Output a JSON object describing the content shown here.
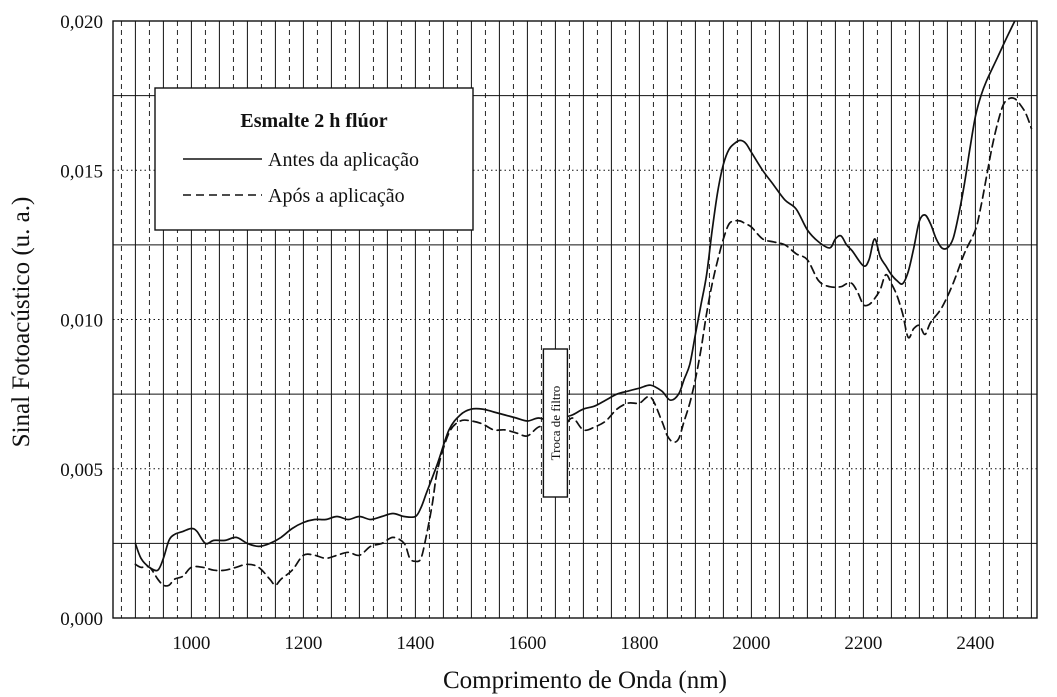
{
  "chart_data": {
    "type": "line",
    "title": "",
    "xlabel": "Comprimento de Onda (nm)",
    "ylabel": "Sinal Fotoacústico (u. a.)",
    "xlim": [
      860,
      2510
    ],
    "ylim": [
      0.0,
      0.02
    ],
    "x_ticks": [
      1000,
      1200,
      1400,
      1600,
      1800,
      2000,
      2200,
      2400
    ],
    "x_tick_labels": [
      "1000",
      "1200",
      "1400",
      "1600",
      "1800",
      "2000",
      "2200",
      "2400"
    ],
    "y_ticks": [
      0.0,
      0.005,
      0.01,
      0.015,
      0.02
    ],
    "y_tick_labels": [
      "0,000",
      "0,005",
      "0,010",
      "0,015",
      "0,020"
    ],
    "grid": true,
    "legend": {
      "title": "Esmalte 2 h flúor",
      "placement": "top-left"
    },
    "annotation": "Troca de filtro",
    "annotation_x": 1650,
    "series": [
      {
        "name": "Antes da aplicação",
        "style": "solid",
        "color": "#111111",
        "x": [
          900,
          910,
          925,
          940,
          950,
          960,
          970,
          985,
          1000,
          1010,
          1025,
          1040,
          1060,
          1080,
          1100,
          1120,
          1140,
          1160,
          1180,
          1200,
          1220,
          1240,
          1260,
          1280,
          1300,
          1320,
          1340,
          1360,
          1380,
          1400,
          1410,
          1420,
          1440,
          1460,
          1480,
          1500,
          1520,
          1540,
          1560,
          1580,
          1600,
          1620,
          1640,
          1660,
          1680,
          1700,
          1720,
          1740,
          1760,
          1780,
          1800,
          1820,
          1840,
          1855,
          1870,
          1880,
          1890,
          1900,
          1910,
          1920,
          1930,
          1940,
          1950,
          1960,
          1970,
          1980,
          1990,
          2000,
          2020,
          2040,
          2060,
          2080,
          2100,
          2120,
          2140,
          2150,
          2160,
          2170,
          2180,
          2200,
          2210,
          2220,
          2230,
          2240,
          2250,
          2260,
          2270,
          2280,
          2290,
          2300,
          2310,
          2320,
          2330,
          2340,
          2350,
          2360,
          2370,
          2380,
          2390,
          2400,
          2410,
          2420,
          2440,
          2460,
          2480,
          2500
        ],
        "y": [
          0.0025,
          0.002,
          0.0017,
          0.0016,
          0.002,
          0.0026,
          0.0028,
          0.0029,
          0.003,
          0.0029,
          0.0025,
          0.0026,
          0.0026,
          0.0027,
          0.0025,
          0.0024,
          0.0025,
          0.0027,
          0.003,
          0.0032,
          0.0033,
          0.0033,
          0.0034,
          0.0033,
          0.0034,
          0.0033,
          0.0034,
          0.0035,
          0.0034,
          0.0034,
          0.0037,
          0.0042,
          0.0052,
          0.0063,
          0.0068,
          0.007,
          0.007,
          0.0069,
          0.0068,
          0.0067,
          0.0066,
          0.0067,
          0.0066,
          0.0067,
          0.0068,
          0.007,
          0.0071,
          0.0073,
          0.0075,
          0.0076,
          0.0077,
          0.0078,
          0.0076,
          0.0073,
          0.0075,
          0.008,
          0.0085,
          0.0095,
          0.0105,
          0.0115,
          0.013,
          0.0143,
          0.0152,
          0.0157,
          0.0159,
          0.016,
          0.0159,
          0.0156,
          0.015,
          0.0145,
          0.014,
          0.0137,
          0.013,
          0.0126,
          0.0124,
          0.0127,
          0.0128,
          0.0125,
          0.0123,
          0.0118,
          0.012,
          0.0127,
          0.0121,
          0.0118,
          0.0115,
          0.0113,
          0.0112,
          0.0116,
          0.0124,
          0.0133,
          0.0135,
          0.0132,
          0.0127,
          0.0124,
          0.0124,
          0.0127,
          0.0135,
          0.0145,
          0.0157,
          0.0168,
          0.0175,
          0.018,
          0.0188,
          0.0196,
          0.0203,
          0.0205
        ],
        "segments": [
          [
            900,
            2468
          ]
        ]
      },
      {
        "name": "Após a aplicação",
        "style": "dashed",
        "color": "#111111",
        "x": [
          900,
          910,
          925,
          940,
          950,
          960,
          970,
          985,
          1000,
          1020,
          1040,
          1060,
          1080,
          1100,
          1120,
          1140,
          1150,
          1160,
          1180,
          1200,
          1220,
          1240,
          1260,
          1280,
          1300,
          1320,
          1340,
          1360,
          1380,
          1390,
          1400,
          1410,
          1420,
          1430,
          1440,
          1460,
          1480,
          1500,
          1520,
          1540,
          1560,
          1580,
          1600,
          1620,
          1640,
          1660,
          1680,
          1700,
          1720,
          1740,
          1760,
          1780,
          1800,
          1820,
          1840,
          1850,
          1860,
          1870,
          1880,
          1890,
          1900,
          1910,
          1920,
          1930,
          1940,
          1950,
          1960,
          1970,
          1980,
          1990,
          2000,
          2020,
          2040,
          2060,
          2080,
          2100,
          2120,
          2140,
          2160,
          2170,
          2180,
          2190,
          2200,
          2210,
          2220,
          2230,
          2240,
          2250,
          2260,
          2270,
          2280,
          2290,
          2300,
          2310,
          2320,
          2340,
          2360,
          2380,
          2400,
          2410,
          2420,
          2430,
          2440,
          2450,
          2460,
          2470,
          2480,
          2490,
          2500
        ],
        "y": [
          0.0018,
          0.0017,
          0.0017,
          0.0013,
          0.0011,
          0.0011,
          0.0013,
          0.0014,
          0.0017,
          0.0017,
          0.0016,
          0.0016,
          0.0017,
          0.0018,
          0.0017,
          0.0013,
          0.0011,
          0.0013,
          0.0016,
          0.0021,
          0.0021,
          0.002,
          0.0021,
          0.0022,
          0.0021,
          0.0024,
          0.0025,
          0.0027,
          0.0025,
          0.002,
          0.0019,
          0.002,
          0.0028,
          0.0038,
          0.005,
          0.0062,
          0.0066,
          0.0066,
          0.0065,
          0.0063,
          0.0063,
          0.0062,
          0.0061,
          0.0064,
          0.0064,
          0.0063,
          0.0067,
          0.0063,
          0.0064,
          0.0066,
          0.007,
          0.0072,
          0.0072,
          0.0074,
          0.0066,
          0.0061,
          0.0059,
          0.006,
          0.0066,
          0.0072,
          0.008,
          0.009,
          0.0102,
          0.0112,
          0.012,
          0.0127,
          0.0132,
          0.0133,
          0.0133,
          0.0132,
          0.0131,
          0.0127,
          0.0126,
          0.0125,
          0.0122,
          0.012,
          0.0113,
          0.0111,
          0.0111,
          0.0112,
          0.0112,
          0.0109,
          0.0105,
          0.0105,
          0.0107,
          0.011,
          0.0115,
          0.0112,
          0.0108,
          0.0102,
          0.0094,
          0.0097,
          0.0098,
          0.0095,
          0.0099,
          0.0104,
          0.0112,
          0.0122,
          0.013,
          0.0138,
          0.0148,
          0.0158,
          0.0166,
          0.0172,
          0.0174,
          0.0174,
          0.0172,
          0.0169,
          0.0164
        ],
        "segments": [
          [
            900,
            2500
          ]
        ]
      }
    ]
  }
}
